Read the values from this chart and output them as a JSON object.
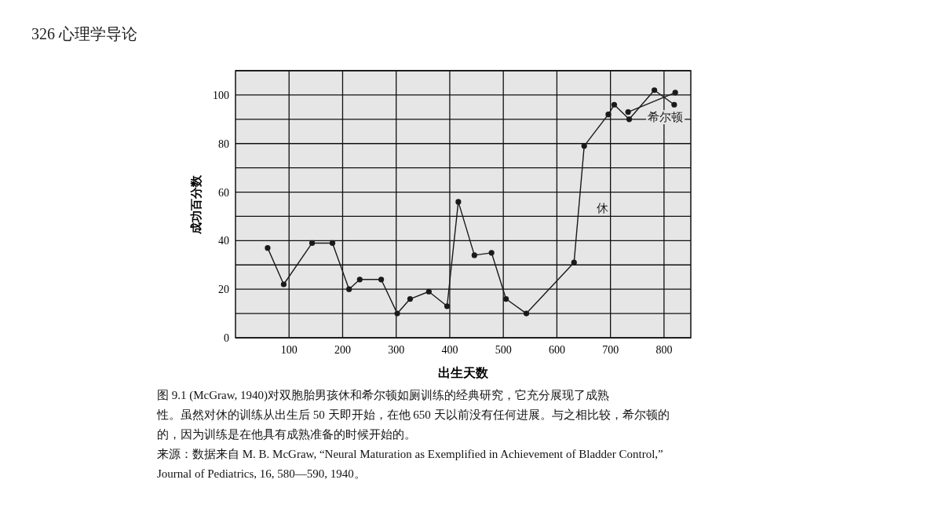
{
  "chart_data": {
    "type": "line",
    "title": "326 心理学导论",
    "xlabel": "出生天数",
    "ylabel": "成功百分数",
    "xlim": [
      0,
      850
    ],
    "xticks": [
      100,
      200,
      300,
      400,
      500,
      600,
      700,
      800
    ],
    "ylim": [
      0,
      110
    ],
    "yticks": [
      0,
      {
        "value": 10,
        "label": null
      },
      20,
      {
        "value": 30,
        "label": null
      },
      40,
      {
        "value": 50,
        "label": null
      },
      60,
      {
        "value": 70,
        "label": null
      },
      80,
      {
        "value": 90,
        "label": null
      },
      100,
      {
        "value": 110,
        "label": null
      }
    ],
    "grid": true,
    "marker": "circle",
    "line_style": "solid",
    "series": [
      {
        "name": "休",
        "color": "#1a1a1a",
        "x": [
          60,
          90,
          143,
          181,
          212,
          232,
          272,
          302,
          326,
          361,
          395,
          416,
          446,
          478,
          505,
          543,
          632,
          651,
          696,
          707,
          735,
          782,
          819
        ],
        "values": [
          37,
          22,
          39,
          39,
          20,
          24,
          24,
          10,
          16,
          19,
          13,
          56,
          34,
          35,
          16,
          10,
          31,
          79,
          92,
          96,
          90,
          102,
          96
        ]
      },
      {
        "name": "希尔顿",
        "color": "#1a1a1a",
        "x": [
          733,
          821
        ],
        "values": [
          93,
          101
        ]
      }
    ],
    "annotations": [
      "图 9.1 (McGraw, 1940)对双胞胎男孩休和希尔顿如厕训练的经典研究，它充分展现了成熟",
      "性。虽然对休的训练从出生后 50 天即开始，在他 650 天以前没有任何进展。与之相比较，希尔顿的",
      "的，因为训练是在他具有成熟准备的时候开始的。",
      "来源：数据来自 M. B. McGraw, “Neural Maturation as Exemplified in Achievement of Bladder Control,”",
      "Journal of Pediatrics, 16, 580—590, 1940。"
    ]
  }
}
